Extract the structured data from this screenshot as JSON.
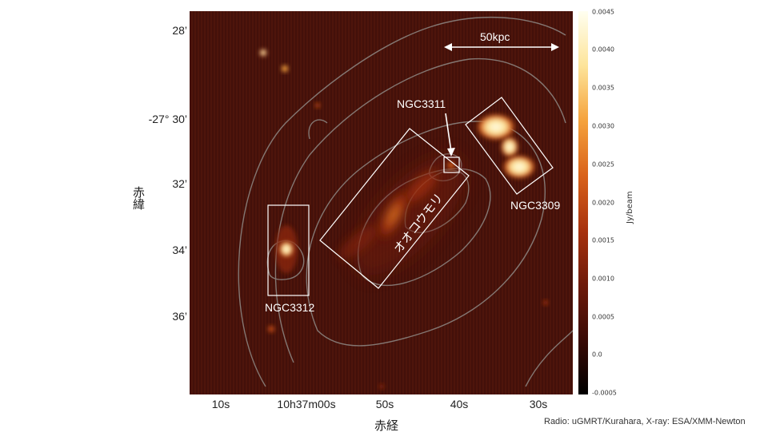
{
  "image": {
    "label_ngc3311": "NGC3311",
    "label_ngc3309": "NGC3309",
    "label_ngc3312": "NGC3312",
    "label_bat": "オオコウモリ",
    "scale_bar": "50kpc",
    "credit": "Radio: uGMRT/Kurahara, X-ray: ESA/XMM-Newton"
  },
  "axes": {
    "y_title": "赤緯",
    "x_title": "赤経",
    "y_ticks": [
      "28’",
      "-27°  30’",
      "32’",
      "34’",
      "36’"
    ],
    "x_ticks": [
      "10s",
      "10h37m00s",
      "50s",
      "40s",
      "30s"
    ]
  },
  "colorbar": {
    "label": "Jy/beam",
    "ticks": [
      "0.0045",
      "0.0040",
      "0.0035",
      "0.0030",
      "0.0025",
      "0.0020",
      "0.0015",
      "0.0010",
      "0.0005",
      "0.0",
      "-0.0005"
    ],
    "colors": [
      "#000000",
      "#3a0a05",
      "#6e1a0a",
      "#a8320e",
      "#d9621a",
      "#f5a23c",
      "#fde49a",
      "#fffff0"
    ]
  }
}
